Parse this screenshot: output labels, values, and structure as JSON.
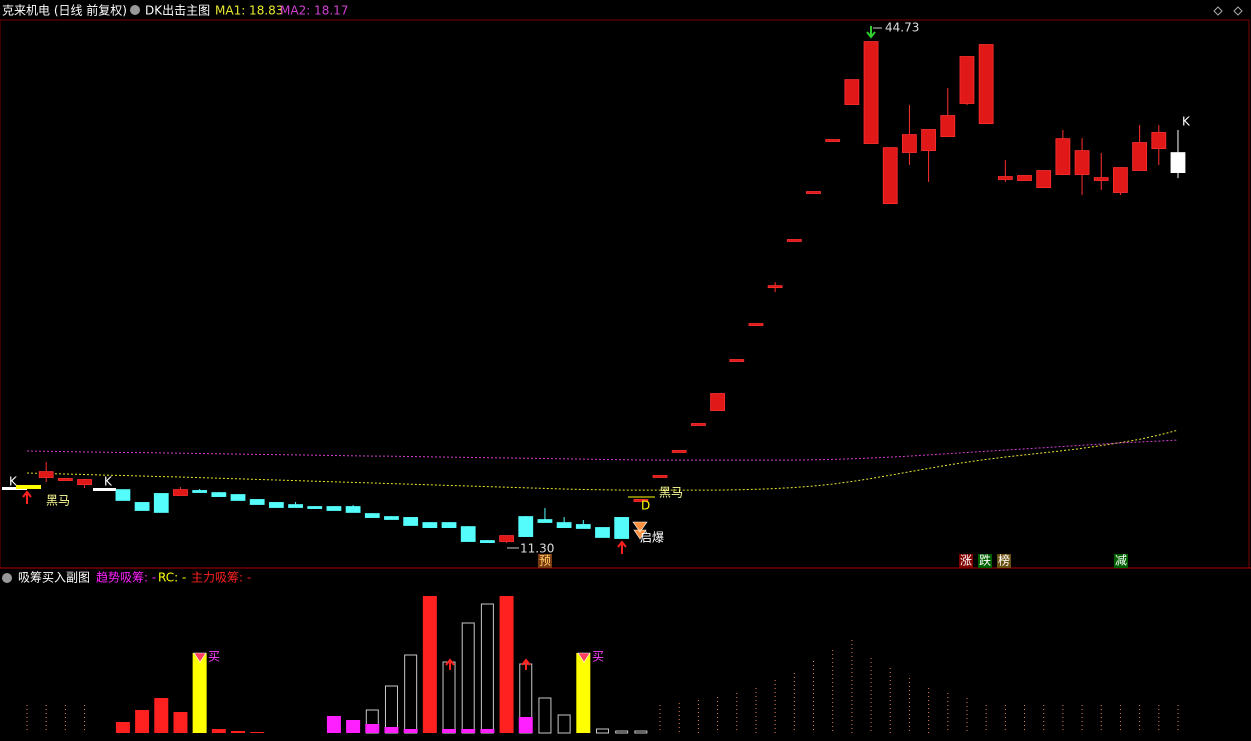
{
  "header": {
    "title": "克来机电 (日线 前复权)",
    "indicator": "DK出击主图"
  },
  "chart_data": [
    {
      "type": "candlestick",
      "ylim": [
        9.63,
        46.2
      ],
      "ohlc": [
        [
          15.03,
          15.1,
          14.97,
          15.1
        ],
        [
          15.7,
          16.7,
          15.37,
          16.03
        ],
        [
          15.5,
          15.57,
          15.5,
          15.57
        ],
        [
          15.23,
          15.57,
          14.97,
          15.5
        ],
        [
          14.9,
          14.97,
          14.83,
          14.9
        ],
        [
          14.83,
          14.83,
          14.17,
          14.17
        ],
        [
          13.97,
          14.03,
          13.5,
          13.5
        ],
        [
          14.57,
          14.63,
          13.37,
          13.37
        ],
        [
          14.5,
          15.03,
          14.5,
          14.83
        ],
        [
          14.77,
          14.9,
          14.7,
          14.7
        ],
        [
          14.63,
          14.7,
          14.43,
          14.43
        ],
        [
          14.5,
          14.57,
          14.17,
          14.17
        ],
        [
          14.17,
          14.23,
          13.9,
          13.9
        ],
        [
          13.97,
          14.03,
          13.7,
          13.7
        ],
        [
          13.83,
          14.03,
          13.7,
          13.7
        ],
        [
          13.7,
          13.77,
          13.63,
          13.63
        ],
        [
          13.7,
          13.77,
          13.5,
          13.5
        ],
        [
          13.7,
          13.83,
          13.37,
          13.37
        ],
        [
          13.23,
          13.3,
          13.03,
          13.03
        ],
        [
          13.03,
          13.1,
          12.9,
          12.9
        ],
        [
          12.97,
          13.03,
          12.5,
          12.5
        ],
        [
          12.63,
          12.7,
          12.36,
          12.36
        ],
        [
          12.63,
          12.7,
          12.36,
          12.36
        ],
        [
          12.36,
          12.43,
          11.43,
          11.43
        ],
        [
          11.43,
          11.5,
          11.36,
          11.36
        ],
        [
          11.43,
          11.76,
          11.3,
          11.76
        ],
        [
          13.03,
          13.1,
          11.76,
          11.76
        ],
        [
          12.83,
          13.63,
          12.7,
          12.7
        ],
        [
          12.63,
          13.03,
          12.36,
          12.36
        ],
        [
          12.5,
          12.83,
          12.3,
          12.3
        ],
        [
          12.3,
          12.36,
          11.7,
          11.7
        ],
        [
          12.97,
          13.03,
          11.63,
          11.63
        ],
        [
          14.17,
          14.17,
          14.17,
          14.17
        ],
        [
          15.77,
          15.77,
          15.77,
          15.77
        ],
        [
          17.44,
          17.44,
          17.44,
          17.44
        ],
        [
          19.24,
          19.24,
          19.24,
          19.24
        ],
        [
          20.17,
          21.24,
          20.17,
          21.24
        ],
        [
          23.51,
          23.51,
          23.51,
          23.51
        ],
        [
          25.91,
          25.91,
          25.91,
          25.91
        ],
        [
          28.44,
          28.71,
          28.04,
          28.44
        ],
        [
          31.52,
          31.52,
          31.52,
          31.52
        ],
        [
          34.72,
          34.72,
          34.72,
          34.72
        ],
        [
          38.19,
          38.19,
          38.19,
          38.19
        ],
        [
          40.59,
          42.19,
          40.52,
          42.19
        ],
        [
          37.99,
          44.73,
          37.99,
          44.73
        ],
        [
          33.98,
          37.65,
          33.98,
          37.65
        ],
        [
          37.39,
          40.52,
          36.52,
          38.52
        ],
        [
          37.52,
          38.86,
          35.39,
          38.86
        ],
        [
          38.45,
          41.66,
          38.45,
          39.79
        ],
        [
          40.66,
          43.73,
          40.52,
          43.73
        ],
        [
          39.32,
          44.53,
          39.32,
          44.53
        ],
        [
          35.59,
          36.85,
          35.39,
          35.72
        ],
        [
          35.52,
          35.79,
          35.52,
          35.79
        ],
        [
          35.05,
          36.12,
          35.05,
          36.12
        ],
        [
          35.92,
          38.86,
          35.85,
          38.25
        ],
        [
          35.92,
          38.32,
          34.52,
          37.45
        ],
        [
          35.52,
          37.32,
          34.85,
          35.65
        ],
        [
          34.72,
          36.32,
          34.52,
          36.32
        ],
        [
          36.19,
          39.19,
          36.19,
          37.99
        ],
        [
          37.65,
          39.19,
          36.52,
          38.66
        ],
        [
          36.05,
          38.86,
          35.65,
          37.32
        ]
      ],
      "up_color": "#ff3030",
      "down_color": "#54fcfc",
      "series": [
        {
          "name": "MA1: 18.83",
          "color": "#e8e830",
          "values": [
            15.97,
            15.93,
            15.9,
            15.87,
            15.83,
            15.8,
            15.77,
            15.73,
            15.7,
            15.66,
            15.62,
            15.58,
            15.54,
            15.5,
            15.46,
            15.42,
            15.38,
            15.34,
            15.3,
            15.26,
            15.22,
            15.18,
            15.14,
            15.1,
            15.06,
            15.02,
            14.98,
            14.94,
            14.9,
            14.87,
            14.85,
            14.83,
            14.83,
            14.83,
            14.83,
            14.83,
            14.83,
            14.85,
            14.88,
            14.93,
            15.0,
            15.1,
            15.23,
            15.4,
            15.6,
            15.82,
            16.05,
            16.28,
            16.5,
            16.7,
            16.88,
            17.04,
            17.18,
            17.32,
            17.46,
            17.62,
            17.8,
            18.0,
            18.22,
            18.5,
            18.83
          ]
        },
        {
          "name": "MA2: 18.17",
          "color": "#d040d0",
          "values": [
            17.44,
            17.42,
            17.4,
            17.38,
            17.36,
            17.34,
            17.33,
            17.31,
            17.29,
            17.27,
            17.25,
            17.23,
            17.21,
            17.2,
            17.18,
            17.16,
            17.14,
            17.12,
            17.1,
            17.09,
            17.07,
            17.05,
            17.03,
            17.01,
            16.99,
            16.97,
            16.96,
            16.94,
            16.92,
            16.9,
            16.88,
            16.86,
            16.84,
            16.83,
            16.83,
            16.83,
            16.83,
            16.83,
            16.83,
            16.83,
            16.83,
            16.85,
            16.88,
            16.92,
            16.97,
            17.03,
            17.1,
            17.18,
            17.26,
            17.34,
            17.42,
            17.5,
            17.58,
            17.66,
            17.74,
            17.82,
            17.9,
            17.98,
            18.04,
            18.1,
            18.17
          ]
        }
      ],
      "high_label": 44.73,
      "low_label": {
        "value": 11.3,
        "label": "11.30"
      },
      "annotations": [
        "K",
        "黑马",
        "K",
        "D",
        "黑马",
        "启爆",
        "预",
        "涨",
        "跌",
        "榜",
        "减",
        "K"
      ]
    },
    {
      "type": "bar",
      "title": "吸筹买入副图",
      "ylim": [
        0,
        143
      ],
      "series": [
        {
          "name": "趋势吸筹: -",
          "color": "#ff20ff",
          "style": "filled",
          "values": [
            null,
            null,
            null,
            null,
            null,
            null,
            null,
            null,
            null,
            null,
            null,
            null,
            null,
            null,
            null,
            null,
            17,
            13,
            9,
            6,
            4,
            null,
            4,
            4,
            4,
            null,
            16,
            null,
            null,
            null,
            null,
            null,
            null,
            null,
            null,
            null,
            null,
            null,
            null,
            null,
            null,
            null,
            null,
            null,
            null,
            null,
            null,
            null,
            null,
            null,
            null,
            null,
            null,
            null,
            null,
            null,
            null,
            null,
            null,
            null,
            null
          ]
        },
        {
          "name": "RC: -",
          "color": "#ffff00",
          "style": "filled",
          "values": [
            null,
            null,
            null,
            null,
            null,
            null,
            null,
            null,
            null,
            80,
            null,
            null,
            null,
            null,
            null,
            null,
            null,
            null,
            null,
            null,
            null,
            null,
            null,
            null,
            null,
            null,
            null,
            null,
            null,
            80,
            null,
            null,
            null,
            null,
            null,
            null,
            null,
            null,
            null,
            null,
            null,
            null,
            null,
            null,
            null,
            null,
            null,
            null,
            null,
            null,
            null,
            null,
            null,
            null,
            null,
            null,
            null,
            null,
            null,
            null,
            null
          ]
        },
        {
          "name": "主力吸筹: -",
          "color": "#ff2020",
          "style": "filled",
          "values": [
            null,
            null,
            null,
            null,
            null,
            11,
            23,
            35,
            21,
            null,
            4,
            2,
            1,
            null,
            null,
            null,
            null,
            null,
            null,
            null,
            null,
            137,
            null,
            null,
            null,
            137,
            null,
            null,
            null,
            null,
            null,
            null,
            null,
            null,
            null,
            null,
            null,
            null,
            null,
            null,
            null,
            null,
            null,
            null,
            null,
            null,
            null,
            null,
            null,
            null,
            null,
            null,
            null,
            null,
            null,
            null,
            null,
            null,
            null,
            null,
            null
          ]
        },
        {
          "color": "#c8c8c8",
          "style": "hollow",
          "values": [
            null,
            null,
            null,
            null,
            null,
            null,
            null,
            null,
            null,
            null,
            null,
            null,
            null,
            null,
            null,
            null,
            null,
            null,
            23,
            47,
            78,
            null,
            71,
            110,
            129,
            null,
            69,
            35,
            18,
            null,
            4,
            2,
            2,
            null,
            null,
            null,
            null,
            null,
            null,
            null,
            null,
            null,
            null,
            null,
            null,
            null,
            null,
            null,
            null,
            null,
            null,
            null,
            null,
            null,
            null,
            null,
            null,
            null,
            null,
            null,
            null
          ]
        },
        {
          "color": "#e08050",
          "style": "dotted",
          "values": [
            28,
            28,
            28,
            28,
            null,
            null,
            null,
            null,
            null,
            null,
            null,
            null,
            null,
            null,
            null,
            null,
            null,
            null,
            null,
            null,
            null,
            null,
            null,
            null,
            null,
            null,
            null,
            null,
            null,
            null,
            null,
            null,
            null,
            28,
            30,
            33,
            36,
            40,
            45,
            53,
            60,
            72,
            83,
            93,
            75,
            65,
            55,
            45,
            40,
            35,
            28,
            28,
            28,
            28,
            28,
            28,
            28,
            28,
            28,
            28,
            28
          ]
        }
      ],
      "annotations": [
        "买",
        "买"
      ]
    }
  ]
}
